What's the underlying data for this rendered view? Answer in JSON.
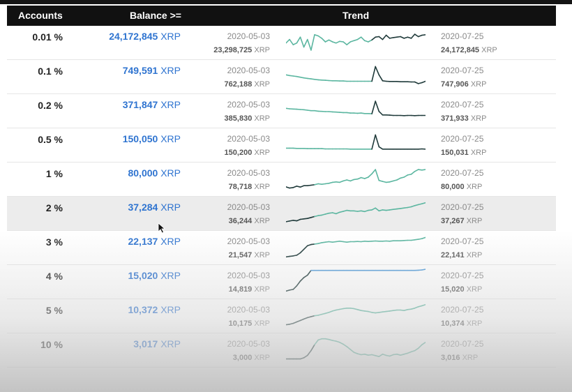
{
  "header": {
    "accounts": "Accounts",
    "balance": "Balance >=",
    "trend": "Trend"
  },
  "colors": {
    "link": "#2f74d0",
    "line_teal": "#5bb6a0",
    "line_dark": "#1f3a3a",
    "line_blue": "#4f9ad8",
    "header_bg": "#111111"
  },
  "rows": [
    {
      "accounts": "0.01 %",
      "balance": "24,172,845",
      "unit": "XRP",
      "start_date": "2020-05-03",
      "start_value": "23,298,725",
      "end_date": "2020-07-25",
      "end_value": "24,172,845"
    },
    {
      "accounts": "0.1 %",
      "balance": "749,591",
      "unit": "XRP",
      "start_date": "2020-05-03",
      "start_value": "762,188",
      "end_date": "2020-07-25",
      "end_value": "747,906"
    },
    {
      "accounts": "0.2 %",
      "balance": "371,847",
      "unit": "XRP",
      "start_date": "2020-05-03",
      "start_value": "385,830",
      "end_date": "2020-07-25",
      "end_value": "371,933"
    },
    {
      "accounts": "0.5 %",
      "balance": "150,050",
      "unit": "XRP",
      "start_date": "2020-05-03",
      "start_value": "150,200",
      "end_date": "2020-07-25",
      "end_value": "150,031"
    },
    {
      "accounts": "1 %",
      "balance": "80,000",
      "unit": "XRP",
      "start_date": "2020-05-03",
      "start_value": "78,718",
      "end_date": "2020-07-25",
      "end_value": "80,000"
    },
    {
      "accounts": "2 %",
      "balance": "37,284",
      "unit": "XRP",
      "start_date": "2020-05-03",
      "start_value": "36,244",
      "end_date": "2020-07-25",
      "end_value": "37,267"
    },
    {
      "accounts": "3 %",
      "balance": "22,137",
      "unit": "XRP",
      "start_date": "2020-05-03",
      "start_value": "21,547",
      "end_date": "2020-07-25",
      "end_value": "22,141"
    },
    {
      "accounts": "4 %",
      "balance": "15,020",
      "unit": "XRP",
      "start_date": "2020-05-03",
      "start_value": "14,819",
      "end_date": "2020-07-25",
      "end_value": "15,020"
    },
    {
      "accounts": "5 %",
      "balance": "10,372",
      "unit": "XRP",
      "start_date": "2020-05-03",
      "start_value": "10,175",
      "end_date": "2020-07-25",
      "end_value": "10,374"
    },
    {
      "accounts": "10 %",
      "balance": "3,017",
      "unit": "XRP",
      "start_date": "2020-05-03",
      "start_value": "3,000",
      "end_date": "2020-07-25",
      "end_value": "3,016"
    }
  ],
  "highlighted_row": 5,
  "trends": [
    [
      0.55,
      0.4,
      0.62,
      0.55,
      0.3,
      0.72,
      0.4,
      0.85,
      0.2,
      0.25,
      0.35,
      0.5,
      0.42,
      0.5,
      0.55,
      0.48,
      0.5,
      0.62,
      0.5,
      0.45,
      0.4,
      0.3,
      0.45,
      0.5,
      0.42,
      0.3,
      0.28,
      0.4,
      0.22,
      0.35,
      0.32,
      0.3,
      0.28,
      0.35,
      0.3,
      0.35,
      0.18,
      0.28,
      0.22,
      0.2
    ],
    [
      0.45,
      0.48,
      0.5,
      0.52,
      0.55,
      0.58,
      0.6,
      0.62,
      0.64,
      0.66,
      0.67,
      0.68,
      0.69,
      0.7,
      0.7,
      0.71,
      0.71,
      0.72,
      0.72,
      0.72,
      0.72,
      0.72,
      0.72,
      0.72,
      0.72,
      0.1,
      0.45,
      0.7,
      0.72,
      0.73,
      0.73,
      0.73,
      0.74,
      0.74,
      0.74,
      0.75,
      0.75,
      0.82,
      0.78,
      0.72
    ],
    [
      0.42,
      0.44,
      0.45,
      0.46,
      0.47,
      0.48,
      0.5,
      0.52,
      0.52,
      0.54,
      0.55,
      0.56,
      0.56,
      0.57,
      0.58,
      0.59,
      0.6,
      0.6,
      0.62,
      0.62,
      0.63,
      0.62,
      0.64,
      0.64,
      0.65,
      0.12,
      0.55,
      0.7,
      0.7,
      0.71,
      0.72,
      0.72,
      0.72,
      0.73,
      0.72,
      0.72,
      0.73,
      0.72,
      0.72,
      0.72
    ],
    [
      0.66,
      0.66,
      0.66,
      0.67,
      0.67,
      0.67,
      0.68,
      0.68,
      0.68,
      0.68,
      0.68,
      0.69,
      0.69,
      0.69,
      0.69,
      0.69,
      0.69,
      0.69,
      0.7,
      0.7,
      0.7,
      0.7,
      0.7,
      0.7,
      0.7,
      0.1,
      0.6,
      0.7,
      0.7,
      0.7,
      0.7,
      0.7,
      0.7,
      0.7,
      0.7,
      0.7,
      0.7,
      0.7,
      0.69,
      0.7
    ],
    [
      0.85,
      0.9,
      0.88,
      0.82,
      0.86,
      0.8,
      0.8,
      0.78,
      0.76,
      0.72,
      0.74,
      0.72,
      0.7,
      0.66,
      0.64,
      0.66,
      0.6,
      0.56,
      0.6,
      0.54,
      0.52,
      0.46,
      0.5,
      0.44,
      0.3,
      0.12,
      0.58,
      0.62,
      0.66,
      0.64,
      0.6,
      0.56,
      0.48,
      0.44,
      0.35,
      0.32,
      0.2,
      0.12,
      0.14,
      0.12
    ],
    [
      0.88,
      0.85,
      0.82,
      0.84,
      0.78,
      0.76,
      0.74,
      0.7,
      0.66,
      0.62,
      0.6,
      0.56,
      0.52,
      0.5,
      0.54,
      0.48,
      0.44,
      0.4,
      0.42,
      0.42,
      0.44,
      0.42,
      0.45,
      0.4,
      0.38,
      0.3,
      0.42,
      0.38,
      0.4,
      0.38,
      0.36,
      0.34,
      0.32,
      0.3,
      0.28,
      0.25,
      0.2,
      0.16,
      0.12,
      0.08
    ],
    [
      0.92,
      0.9,
      0.88,
      0.85,
      0.75,
      0.6,
      0.45,
      0.4,
      0.38,
      0.36,
      0.32,
      0.3,
      0.28,
      0.3,
      0.28,
      0.26,
      0.28,
      0.3,
      0.28,
      0.28,
      0.27,
      0.28,
      0.26,
      0.27,
      0.26,
      0.25,
      0.26,
      0.26,
      0.25,
      0.26,
      0.24,
      0.24,
      0.24,
      0.23,
      0.22,
      0.22,
      0.2,
      0.18,
      0.15,
      0.1
    ],
    [
      0.92,
      0.88,
      0.85,
      0.7,
      0.5,
      0.35,
      0.25,
      0.05,
      0.05,
      0.05,
      0.05,
      0.05,
      0.05,
      0.05,
      0.05,
      0.05,
      0.05,
      0.05,
      0.05,
      0.05,
      0.05,
      0.05,
      0.05,
      0.05,
      0.05,
      0.05,
      0.05,
      0.05,
      0.05,
      0.05,
      0.05,
      0.05,
      0.05,
      0.05,
      0.05,
      0.05,
      0.05,
      0.04,
      0.03,
      0.0
    ],
    [
      0.9,
      0.88,
      0.84,
      0.78,
      0.72,
      0.66,
      0.6,
      0.56,
      0.52,
      0.5,
      0.46,
      0.42,
      0.38,
      0.32,
      0.28,
      0.25,
      0.22,
      0.2,
      0.2,
      0.22,
      0.26,
      0.3,
      0.32,
      0.34,
      0.38,
      0.4,
      0.38,
      0.36,
      0.34,
      0.32,
      0.3,
      0.28,
      0.28,
      0.3,
      0.26,
      0.24,
      0.2,
      0.14,
      0.1,
      0.05
    ],
    [
      0.9,
      0.9,
      0.9,
      0.9,
      0.9,
      0.85,
      0.75,
      0.55,
      0.3,
      0.1,
      0.05,
      0.05,
      0.08,
      0.12,
      0.15,
      0.2,
      0.28,
      0.38,
      0.5,
      0.62,
      0.68,
      0.72,
      0.7,
      0.74,
      0.72,
      0.76,
      0.8,
      0.7,
      0.75,
      0.78,
      0.72,
      0.7,
      0.74,
      0.7,
      0.66,
      0.6,
      0.55,
      0.45,
      0.3,
      0.2
    ]
  ]
}
